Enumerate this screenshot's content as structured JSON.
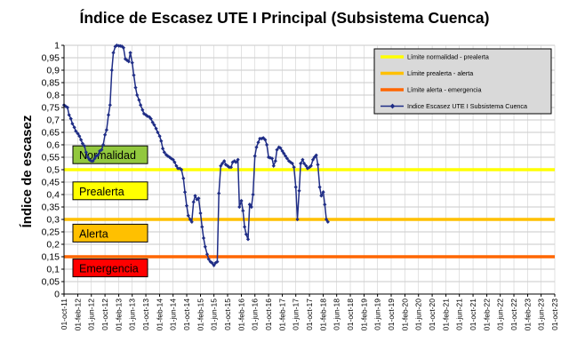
{
  "chart_data": {
    "type": "line",
    "title": "Índice de Escasez UTE I Principal (Subsistema Cuenca)",
    "ylabel": "Índice de escasez",
    "xlabel": "",
    "ylim": [
      0,
      1
    ],
    "ytick_step": 0.05,
    "yticks": [
      "0",
      "0,05",
      "0,1",
      "0,15",
      "0,2",
      "0,25",
      "0,3",
      "0,35",
      "0,4",
      "0,45",
      "0,5",
      "0,55",
      "0,6",
      "0,65",
      "0,7",
      "0,75",
      "0,8",
      "0,85",
      "0,9",
      "0,95",
      "1"
    ],
    "xticks": [
      "01-oct-11",
      "01-feb-12",
      "01-jun-12",
      "01-oct-12",
      "01-feb-13",
      "01-jun-13",
      "01-oct-13",
      "01-feb-14",
      "01-jun-14",
      "01-oct-14",
      "01-feb-15",
      "01-jun-15",
      "01-oct-15",
      "01-feb-16",
      "01-jun-16",
      "01-oct-16",
      "01-feb-17",
      "01-jun-17",
      "01-oct-17",
      "01-feb-18",
      "01-jun-18",
      "01-oct-18",
      "01-feb-19",
      "01-jun-19",
      "01-oct-19",
      "01-feb-20",
      "01-jun-20",
      "01-oct-20",
      "01-feb-21",
      "01-jun-21",
      "01-oct-21",
      "01-feb-22",
      "01-jun-22",
      "01-oct-22",
      "01-feb-23",
      "01-jun-23",
      "01-oct-23"
    ],
    "grid": true,
    "legend_position": "top-right",
    "thresholds": [
      {
        "name": "Límite normalidad - prealerta",
        "value": 0.5,
        "color": "#FFFF00"
      },
      {
        "name": "Límite prealerta - alerta",
        "value": 0.3,
        "color": "#FFC000"
      },
      {
        "name": "Límite alerta - emergencia",
        "value": 0.15,
        "color": "#FF6600"
      }
    ],
    "zones": [
      {
        "label": "Normalidad",
        "center": 0.56,
        "color": "#92C83E"
      },
      {
        "label": "Prealerta",
        "center": 0.415,
        "color": "#FFFF00"
      },
      {
        "label": "Alerta",
        "center": 0.245,
        "color": "#FFC000"
      },
      {
        "label": "Emergencia",
        "center": 0.105,
        "color": "#FF0000"
      }
    ],
    "series": [
      {
        "name": "Indice Escasez UTE I Subsistema Cuenca",
        "color": "#1F2D86",
        "points": [
          [
            "01-oct-11",
            0.76
          ],
          [
            "15-oct-11",
            0.755
          ],
          [
            "01-nov-11",
            0.75
          ],
          [
            "15-nov-11",
            0.72
          ],
          [
            "01-dic-11",
            0.705
          ],
          [
            "15-dic-11",
            0.685
          ],
          [
            "01-ene-12",
            0.67
          ],
          [
            "15-ene-12",
            0.655
          ],
          [
            "01-feb-12",
            0.645
          ],
          [
            "15-feb-12",
            0.635
          ],
          [
            "01-mar-12",
            0.62
          ],
          [
            "15-mar-12",
            0.605
          ],
          [
            "01-abr-12",
            0.595
          ],
          [
            "15-abr-12",
            0.57
          ],
          [
            "01-may-12",
            0.55
          ],
          [
            "15-may-12",
            0.54
          ],
          [
            "01-jun-12",
            0.535
          ],
          [
            "15-jun-12",
            0.535
          ],
          [
            "01-jul-12",
            0.545
          ],
          [
            "15-jul-12",
            0.555
          ],
          [
            "01-ago-12",
            0.56
          ],
          [
            "15-ago-12",
            0.575
          ],
          [
            "01-sep-12",
            0.58
          ],
          [
            "15-sep-12",
            0.6
          ],
          [
            "01-oct-12",
            0.64
          ],
          [
            "15-oct-12",
            0.66
          ],
          [
            "01-nov-12",
            0.72
          ],
          [
            "15-nov-12",
            0.76
          ],
          [
            "01-dic-12",
            0.9
          ],
          [
            "15-dic-12",
            0.97
          ],
          [
            "01-ene-13",
            0.995
          ],
          [
            "15-ene-13",
            1.0
          ],
          [
            "01-feb-13",
            0.998
          ],
          [
            "15-feb-13",
            0.997
          ],
          [
            "01-mar-13",
            0.996
          ],
          [
            "15-mar-13",
            0.99
          ],
          [
            "01-abr-13",
            0.945
          ],
          [
            "15-abr-13",
            0.94
          ],
          [
            "01-may-13",
            0.935
          ],
          [
            "15-may-13",
            0.97
          ],
          [
            "01-jun-13",
            0.93
          ],
          [
            "15-jun-13",
            0.88
          ],
          [
            "01-jul-13",
            0.83
          ],
          [
            "15-jul-13",
            0.8
          ],
          [
            "01-ago-13",
            0.78
          ],
          [
            "15-ago-13",
            0.76
          ],
          [
            "01-sep-13",
            0.74
          ],
          [
            "15-sep-13",
            0.725
          ],
          [
            "01-oct-13",
            0.72
          ],
          [
            "15-oct-13",
            0.715
          ],
          [
            "01-nov-13",
            0.712
          ],
          [
            "15-nov-13",
            0.705
          ],
          [
            "01-dic-13",
            0.69
          ],
          [
            "15-dic-13",
            0.68
          ],
          [
            "01-ene-14",
            0.665
          ],
          [
            "15-ene-14",
            0.65
          ],
          [
            "01-feb-14",
            0.635
          ],
          [
            "15-feb-14",
            0.615
          ],
          [
            "01-mar-14",
            0.585
          ],
          [
            "15-mar-14",
            0.57
          ],
          [
            "01-abr-14",
            0.56
          ],
          [
            "15-abr-14",
            0.555
          ],
          [
            "01-may-14",
            0.55
          ],
          [
            "15-may-14",
            0.545
          ],
          [
            "01-jun-14",
            0.54
          ],
          [
            "15-jun-14",
            0.53
          ],
          [
            "01-jul-14",
            0.515
          ],
          [
            "15-jul-14",
            0.505
          ],
          [
            "01-ago-14",
            0.505
          ],
          [
            "15-ago-14",
            0.5
          ],
          [
            "01-sep-14",
            0.465
          ],
          [
            "15-sep-14",
            0.41
          ],
          [
            "01-oct-14",
            0.355
          ],
          [
            "15-oct-14",
            0.315
          ],
          [
            "01-nov-14",
            0.3
          ],
          [
            "15-nov-14",
            0.29
          ],
          [
            "01-dic-14",
            0.37
          ],
          [
            "15-dic-14",
            0.395
          ],
          [
            "01-ene-15",
            0.38
          ],
          [
            "15-ene-15",
            0.385
          ],
          [
            "01-feb-15",
            0.325
          ],
          [
            "15-feb-15",
            0.27
          ],
          [
            "01-mar-15",
            0.225
          ],
          [
            "15-mar-15",
            0.19
          ],
          [
            "01-abr-15",
            0.16
          ],
          [
            "15-abr-15",
            0.14
          ],
          [
            "01-may-15",
            0.13
          ],
          [
            "15-may-15",
            0.125
          ],
          [
            "01-jun-15",
            0.115
          ],
          [
            "15-jun-15",
            0.125
          ],
          [
            "01-jul-15",
            0.13
          ],
          [
            "15-jul-15",
            0.405
          ],
          [
            "01-ago-15",
            0.515
          ],
          [
            "15-ago-15",
            0.525
          ],
          [
            "01-sep-15",
            0.535
          ],
          [
            "15-sep-15",
            0.52
          ],
          [
            "01-oct-15",
            0.515
          ],
          [
            "15-oct-15",
            0.51
          ],
          [
            "01-nov-15",
            0.51
          ],
          [
            "15-nov-15",
            0.53
          ],
          [
            "01-dic-15",
            0.535
          ],
          [
            "15-dic-15",
            0.53
          ],
          [
            "01-ene-16",
            0.54
          ],
          [
            "15-ene-16",
            0.35
          ],
          [
            "01-feb-16",
            0.375
          ],
          [
            "15-feb-16",
            0.335
          ],
          [
            "01-mar-16",
            0.27
          ],
          [
            "15-mar-16",
            0.24
          ],
          [
            "01-abr-16",
            0.22
          ],
          [
            "15-abr-16",
            0.36
          ],
          [
            "01-may-16",
            0.35
          ],
          [
            "15-may-16",
            0.4
          ],
          [
            "01-jun-16",
            0.555
          ],
          [
            "15-jun-16",
            0.59
          ],
          [
            "01-jul-16",
            0.61
          ],
          [
            "15-jul-16",
            0.625
          ],
          [
            "01-ago-16",
            0.625
          ],
          [
            "15-ago-16",
            0.628
          ],
          [
            "01-sep-16",
            0.62
          ],
          [
            "15-sep-16",
            0.6
          ],
          [
            "01-oct-16",
            0.55
          ],
          [
            "15-oct-16",
            0.548
          ],
          [
            "01-nov-16",
            0.545
          ],
          [
            "15-nov-16",
            0.515
          ],
          [
            "01-dic-16",
            0.535
          ],
          [
            "15-dic-16",
            0.58
          ],
          [
            "01-ene-17",
            0.59
          ],
          [
            "15-ene-17",
            0.587
          ],
          [
            "01-feb-17",
            0.575
          ],
          [
            "15-feb-17",
            0.565
          ],
          [
            "01-mar-17",
            0.555
          ],
          [
            "15-mar-17",
            0.545
          ],
          [
            "01-abr-17",
            0.535
          ],
          [
            "15-abr-17",
            0.53
          ],
          [
            "01-may-17",
            0.525
          ],
          [
            "15-may-17",
            0.51
          ],
          [
            "01-jun-17",
            0.43
          ],
          [
            "15-jun-17",
            0.3
          ],
          [
            "01-jul-17",
            0.415
          ],
          [
            "15-jul-17",
            0.525
          ],
          [
            "01-ago-17",
            0.54
          ],
          [
            "15-ago-17",
            0.525
          ],
          [
            "01-sep-17",
            0.515
          ],
          [
            "15-sep-17",
            0.505
          ],
          [
            "01-oct-17",
            0.51
          ],
          [
            "15-oct-17",
            0.515
          ],
          [
            "01-nov-17",
            0.54
          ],
          [
            "15-nov-17",
            0.55
          ],
          [
            "01-dic-17",
            0.558
          ],
          [
            "15-dic-17",
            0.52
          ],
          [
            "01-ene-18",
            0.43
          ],
          [
            "15-ene-18",
            0.395
          ],
          [
            "01-feb-18",
            0.41
          ],
          [
            "15-feb-18",
            0.36
          ],
          [
            "01-mar-18",
            0.3
          ],
          [
            "15-mar-18",
            0.29
          ]
        ]
      }
    ]
  }
}
